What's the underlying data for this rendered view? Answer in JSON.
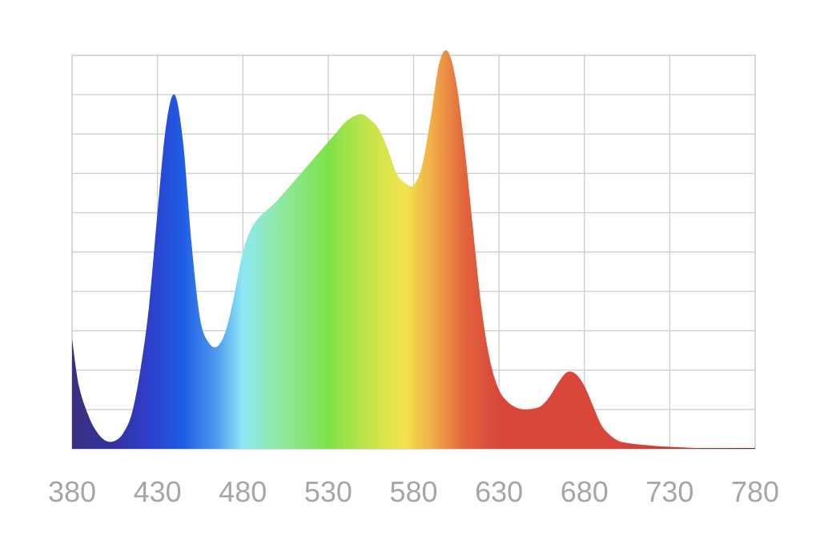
{
  "chart_data": {
    "type": "area",
    "title": "",
    "xlabel": "",
    "ylabel": "",
    "xlim": [
      380,
      780
    ],
    "ylim": [
      0,
      10
    ],
    "grid": true,
    "legend": "none",
    "x_ticks": [
      "380",
      "430",
      "480",
      "530",
      "580",
      "630",
      "680",
      "730",
      "780"
    ],
    "series": [
      {
        "x": [
          380,
          384,
          390,
          395,
          400,
          405,
          410,
          415,
          420,
          425,
          430,
          435,
          440,
          445,
          450,
          455,
          460,
          465,
          470,
          475,
          480,
          485,
          490,
          495,
          500,
          505,
          510,
          515,
          520,
          525,
          530,
          535,
          540,
          545,
          550,
          555,
          560,
          565,
          570,
          575,
          580,
          585,
          590,
          595,
          600,
          605,
          610,
          615,
          620,
          625,
          630,
          635,
          640,
          645,
          650,
          655,
          660,
          665,
          670,
          675,
          680,
          685,
          690,
          695,
          700,
          705,
          710,
          715,
          720,
          725,
          730,
          735,
          740,
          745,
          750,
          755,
          760,
          765,
          770,
          775,
          780
        ],
        "values": [
          2.8,
          1.6,
          0.8,
          0.4,
          0.2,
          0.2,
          0.4,
          0.9,
          2.0,
          3.6,
          6.0,
          8.2,
          9.0,
          7.8,
          5.2,
          3.3,
          2.7,
          2.6,
          3.0,
          3.9,
          5.0,
          5.6,
          5.9,
          6.1,
          6.3,
          6.55,
          6.8,
          7.05,
          7.3,
          7.55,
          7.8,
          8.05,
          8.3,
          8.45,
          8.5,
          8.35,
          8.1,
          7.6,
          7.0,
          6.75,
          6.7,
          7.2,
          8.4,
          9.8,
          10.1,
          9.3,
          7.6,
          5.5,
          3.5,
          2.2,
          1.5,
          1.2,
          1.05,
          1.0,
          1.02,
          1.1,
          1.35,
          1.7,
          1.95,
          1.9,
          1.6,
          1.1,
          0.6,
          0.35,
          0.2,
          0.15,
          0.12,
          0.1,
          0.08,
          0.06,
          0.05,
          0.04,
          0.03,
          0.02,
          0.02,
          0.02,
          0.02,
          0.02,
          0.02,
          0.02,
          0.02
        ]
      }
    ],
    "colors": {
      "grid": "#cfcfcf",
      "tick_text": "#a6a6a6",
      "gradient_stops": [
        {
          "wavelength": 380,
          "color": "#3a3180"
        },
        {
          "wavelength": 405,
          "color": "#3332a0"
        },
        {
          "wavelength": 425,
          "color": "#2e3fc9"
        },
        {
          "wavelength": 445,
          "color": "#1f5ce6"
        },
        {
          "wavelength": 465,
          "color": "#4f9cef"
        },
        {
          "wavelength": 480,
          "color": "#8ee8f2"
        },
        {
          "wavelength": 500,
          "color": "#8fe9a8"
        },
        {
          "wavelength": 530,
          "color": "#7ee24a"
        },
        {
          "wavelength": 555,
          "color": "#c8e44a"
        },
        {
          "wavelength": 575,
          "color": "#f2e34c"
        },
        {
          "wavelength": 590,
          "color": "#f0b048"
        },
        {
          "wavelength": 610,
          "color": "#e2643c"
        },
        {
          "wavelength": 630,
          "color": "#d9473b"
        },
        {
          "wavelength": 700,
          "color": "#d9473b"
        },
        {
          "wavelength": 740,
          "color": "#b33c33"
        },
        {
          "wavelength": 780,
          "color": "#7a2420"
        }
      ]
    }
  }
}
